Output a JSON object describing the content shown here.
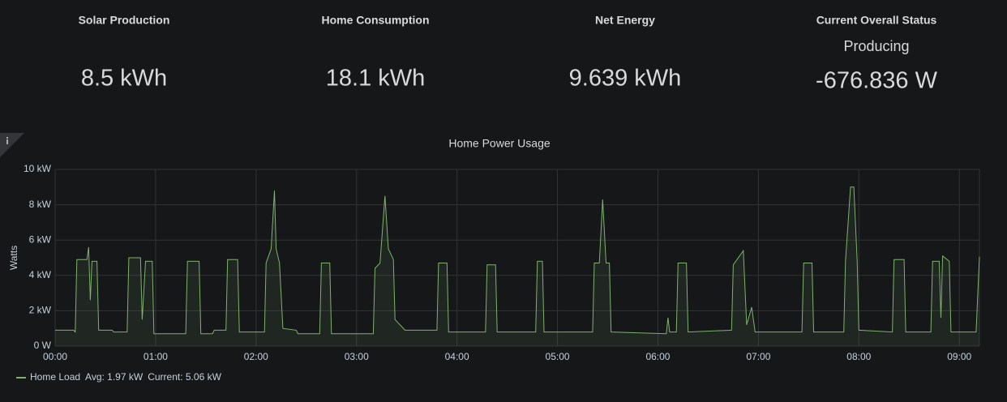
{
  "stats": [
    {
      "title": "Solar Production",
      "value": "8.5 kWh",
      "color": "#73bf69"
    },
    {
      "title": "Home Consumption",
      "value": "18.1 kWh",
      "color": "#ff9830"
    },
    {
      "title": "Net Energy",
      "value": "9.639 kWh",
      "color": "#e0462f"
    },
    {
      "title": "Current Overall Status",
      "status": "Producing",
      "value": "-676.836 W",
      "color": "#299c46"
    }
  ],
  "chart_data": {
    "type": "line",
    "title": "Home Power Usage",
    "y_label": "Watts",
    "x": [
      "00:00",
      "00:11",
      "00:12",
      "00:13",
      "00:19",
      "00:20",
      "00:21",
      "00:22",
      "00:25",
      "00:26",
      "00:34",
      "00:35",
      "00:43",
      "00:44",
      "00:51",
      "00:52",
      "00:54",
      "00:58",
      "00:59",
      "01:18",
      "01:19",
      "01:26",
      "01:27",
      "01:34",
      "01:35",
      "01:42",
      "01:43",
      "01:49",
      "01:50",
      "02:05",
      "02:06",
      "02:09",
      "02:11",
      "02:12",
      "02:14",
      "02:16",
      "02:24",
      "02:25",
      "02:38",
      "02:39",
      "02:44",
      "02:45",
      "03:10",
      "03:11",
      "03:14",
      "03:17",
      "03:19",
      "03:22",
      "03:23",
      "03:29",
      "03:48",
      "03:49",
      "03:54",
      "03:55",
      "04:17",
      "04:18",
      "04:23",
      "04:24",
      "04:47",
      "04:48",
      "04:51",
      "04:52",
      "05:21",
      "05:22",
      "05:25",
      "05:27",
      "05:29",
      "05:31",
      "05:32",
      "06:05",
      "06:06",
      "06:07",
      "06:11",
      "06:12",
      "06:17",
      "06:18",
      "06:44",
      "06:45",
      "06:51",
      "06:53",
      "06:56",
      "06:58",
      "07:26",
      "07:27",
      "07:32",
      "07:33",
      "07:51",
      "07:52",
      "07:55",
      "07:57",
      "07:59",
      "08:00",
      "08:20",
      "08:21",
      "08:27",
      "08:28",
      "08:43",
      "08:44",
      "08:48",
      "08:49",
      "08:50",
      "08:54",
      "08:55",
      "09:10",
      "09:12"
    ],
    "series": [
      {
        "name": "Home Load",
        "color": "#7eb26d",
        "values": [
          0.9,
          0.9,
          0.8,
          4.9,
          4.9,
          5.6,
          2.6,
          4.8,
          4.8,
          0.9,
          0.9,
          0.8,
          0.8,
          5.0,
          5.0,
          1.5,
          4.8,
          4.8,
          0.7,
          0.7,
          4.8,
          4.8,
          0.7,
          0.7,
          0.9,
          0.9,
          4.9,
          4.9,
          0.8,
          0.8,
          4.7,
          5.5,
          8.8,
          5.5,
          4.7,
          1.0,
          0.9,
          0.7,
          0.7,
          4.7,
          4.7,
          0.7,
          0.7,
          4.4,
          4.7,
          8.5,
          5.5,
          4.9,
          1.5,
          0.9,
          0.9,
          4.7,
          4.7,
          0.8,
          0.8,
          4.6,
          4.6,
          0.8,
          0.8,
          4.8,
          4.8,
          0.8,
          0.8,
          4.7,
          4.7,
          8.3,
          4.7,
          4.7,
          0.8,
          0.7,
          1.6,
          0.8,
          0.8,
          4.7,
          4.7,
          0.8,
          0.9,
          4.6,
          5.4,
          1.2,
          2.2,
          0.8,
          0.8,
          4.7,
          4.7,
          0.8,
          0.8,
          4.8,
          9.0,
          9.0,
          4.8,
          0.9,
          0.8,
          4.9,
          4.9,
          0.8,
          0.8,
          4.8,
          4.8,
          1.6,
          5.1,
          4.8,
          0.8,
          0.8,
          5.06
        ]
      }
    ],
    "legend_stats": [
      "Avg: 1.97 kW",
      "Current: 5.06 kW"
    ],
    "xlim": [
      "00:00",
      "09:12"
    ],
    "xticks": [
      "00:00",
      "01:00",
      "02:00",
      "03:00",
      "04:00",
      "05:00",
      "06:00",
      "07:00",
      "08:00",
      "09:00"
    ],
    "ylim": [
      0,
      10
    ],
    "yticks": [
      {
        "value": 0,
        "label": "0 W"
      },
      {
        "value": 2,
        "label": "2 kW"
      },
      {
        "value": 4,
        "label": "4 kW"
      },
      {
        "value": 6,
        "label": "6 kW"
      },
      {
        "value": 8,
        "label": "8 kW"
      },
      {
        "value": 10,
        "label": "10 kW"
      }
    ],
    "grid": true
  }
}
